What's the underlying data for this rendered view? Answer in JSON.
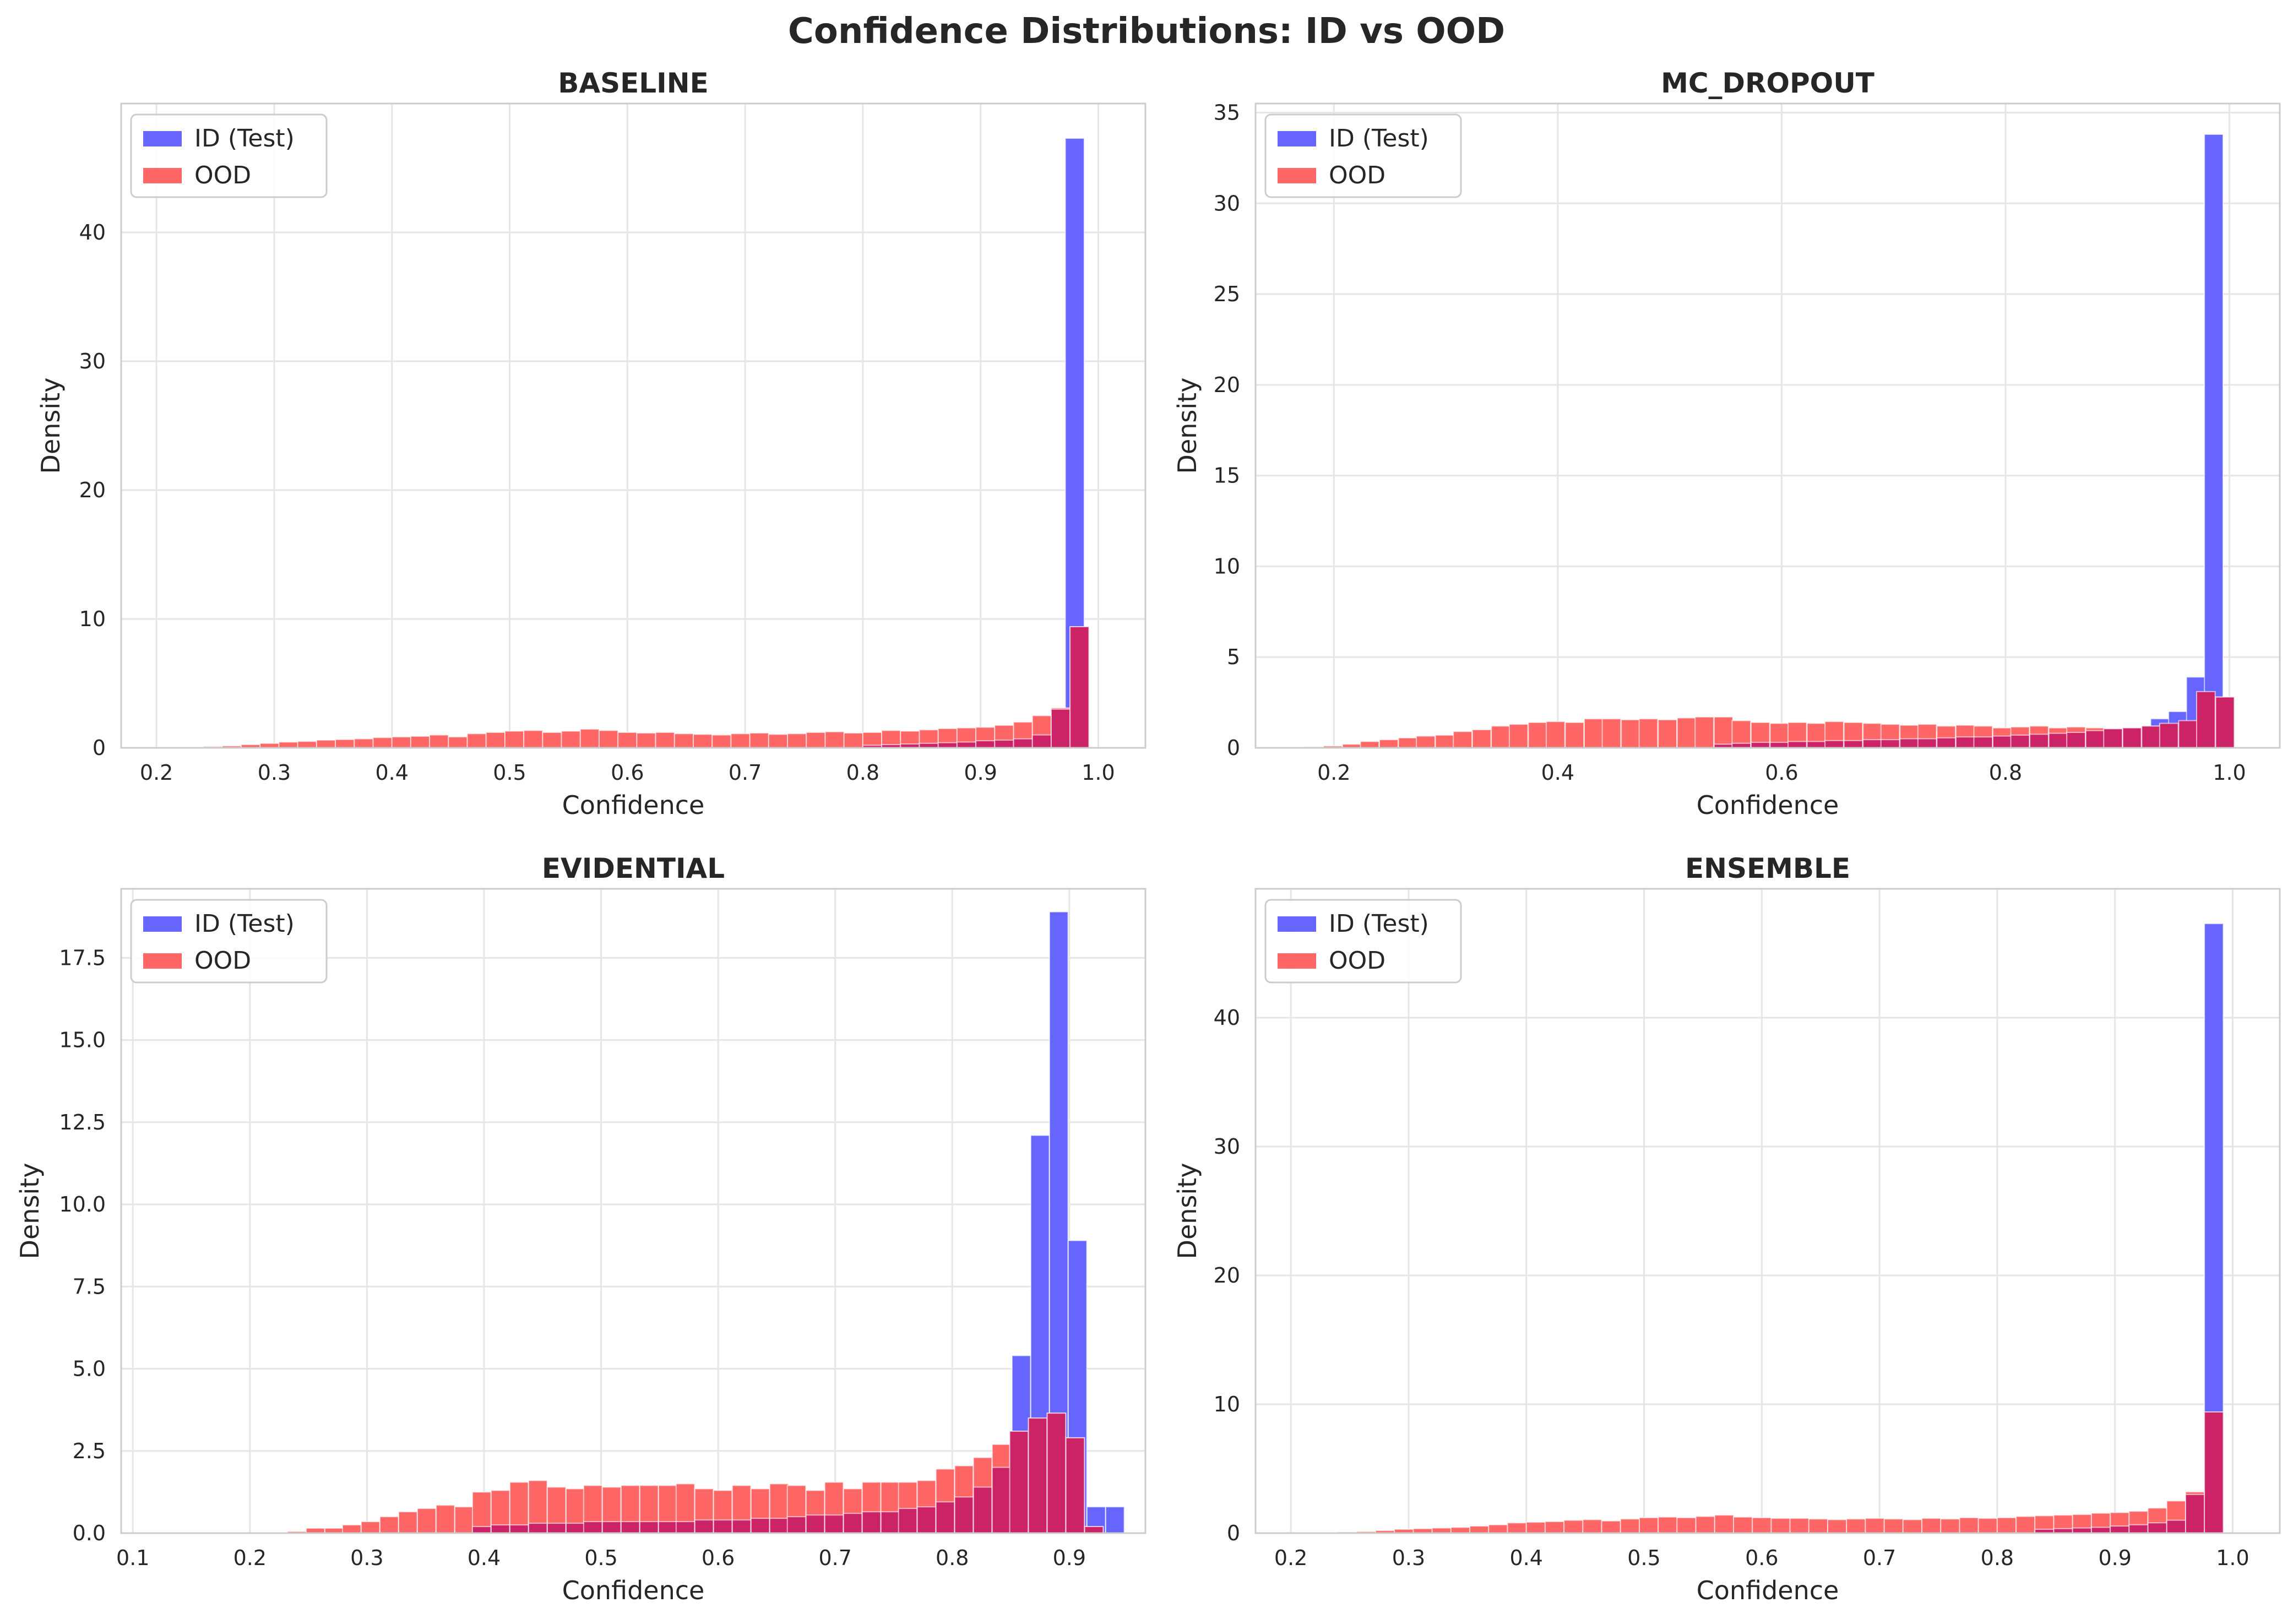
{
  "figure": {
    "title": "Confidence Distributions: ID vs OOD"
  },
  "colors": {
    "id_bar": "#6666ff",
    "ood_bar": "#ff6666",
    "overlap_bar": "#cc2266",
    "grid": "#e6e6e6",
    "axes_border": "#cccccc",
    "text": "#262626"
  },
  "chart_data": [
    {
      "type": "bar",
      "title": "BASELINE",
      "xlabel": "Confidence",
      "ylabel": "Density",
      "xlim": [
        0.17,
        1.04
      ],
      "ylim": [
        0,
        50
      ],
      "xticks": [
        0.2,
        0.3,
        0.4,
        0.5,
        0.6,
        0.7,
        0.8,
        0.9,
        1.0
      ],
      "xtick_labels": [
        "0.2",
        "0.3",
        "0.4",
        "0.5",
        "0.6",
        "0.7",
        "0.8",
        "0.9",
        "1.0"
      ],
      "yticks": [
        0,
        10,
        20,
        30,
        40
      ],
      "ytick_labels": [
        "0",
        "10",
        "20",
        "30",
        "40"
      ],
      "grid": true,
      "legend_position": "top-left",
      "series": [
        {
          "name": "ID (Test)",
          "x": [
            0.98
          ],
          "bin_width": 0.016,
          "values": [
            47.3
          ]
        },
        {
          "name": "OOD",
          "x": [
            0.2,
            0.216,
            0.232,
            0.248,
            0.264,
            0.28,
            0.296,
            0.312,
            0.328,
            0.344,
            0.36,
            0.376,
            0.392,
            0.408,
            0.424,
            0.44,
            0.456,
            0.472,
            0.488,
            0.504,
            0.52,
            0.536,
            0.552,
            0.568,
            0.584,
            0.6,
            0.616,
            0.632,
            0.648,
            0.664,
            0.68,
            0.696,
            0.712,
            0.728,
            0.744,
            0.76,
            0.776,
            0.792,
            0.808,
            0.824,
            0.84,
            0.856,
            0.872,
            0.888,
            0.904,
            0.92,
            0.936,
            0.952,
            0.968,
            0.984
          ],
          "bin_width": 0.016,
          "values": [
            0.02,
            0.03,
            0.05,
            0.1,
            0.15,
            0.25,
            0.35,
            0.45,
            0.5,
            0.6,
            0.65,
            0.7,
            0.8,
            0.85,
            0.9,
            1.0,
            0.85,
            1.1,
            1.2,
            1.3,
            1.35,
            1.2,
            1.3,
            1.45,
            1.35,
            1.2,
            1.15,
            1.2,
            1.1,
            1.05,
            1.0,
            1.1,
            1.15,
            1.05,
            1.1,
            1.2,
            1.25,
            1.15,
            1.2,
            1.35,
            1.3,
            1.4,
            1.5,
            1.55,
            1.6,
            1.75,
            2.0,
            2.5,
            3.1,
            9.4
          ]
        }
      ],
      "overlap": {
        "x": [
          0.808,
          0.824,
          0.84,
          0.856,
          0.872,
          0.888,
          0.904,
          0.92,
          0.936,
          0.952,
          0.968,
          0.984
        ],
        "bin_width": 0.016,
        "values": [
          0.2,
          0.25,
          0.3,
          0.35,
          0.4,
          0.45,
          0.55,
          0.6,
          0.7,
          1.0,
          3.0,
          9.4
        ]
      }
    },
    {
      "type": "bar",
      "title": "MC_DROPOUT",
      "xlabel": "Confidence",
      "ylabel": "Density",
      "xlim": [
        0.13,
        1.045
      ],
      "ylim": [
        0,
        35.5
      ],
      "xticks": [
        0.2,
        0.4,
        0.6,
        0.8,
        1.0
      ],
      "xtick_labels": [
        "0.2",
        "0.4",
        "0.6",
        "0.8",
        "1.0"
      ],
      "yticks": [
        0,
        5,
        10,
        15,
        20,
        25,
        30,
        35
      ],
      "ytick_labels": [
        "0",
        "5",
        "10",
        "15",
        "20",
        "25",
        "30",
        "35"
      ],
      "grid": true,
      "legend_position": "top-left",
      "series": [
        {
          "name": "ID (Test)",
          "x": [
            0.938,
            0.954,
            0.97,
            0.986
          ],
          "bin_width": 0.0166,
          "values": [
            1.6,
            2.0,
            3.9,
            33.8
          ]
        },
        {
          "name": "OOD",
          "x": [
            0.166,
            0.183,
            0.199,
            0.216,
            0.232,
            0.249,
            0.266,
            0.282,
            0.299,
            0.315,
            0.332,
            0.349,
            0.365,
            0.382,
            0.398,
            0.415,
            0.432,
            0.448,
            0.465,
            0.481,
            0.498,
            0.515,
            0.531,
            0.548,
            0.564,
            0.581,
            0.598,
            0.614,
            0.631,
            0.647,
            0.664,
            0.681,
            0.697,
            0.714,
            0.73,
            0.747,
            0.764,
            0.78,
            0.797,
            0.813,
            0.83,
            0.847,
            0.863,
            0.88,
            0.896,
            0.913,
            0.93,
            0.946,
            0.963,
            0.979,
            0.996
          ],
          "bin_width": 0.0166,
          "values": [
            0.02,
            0.05,
            0.1,
            0.2,
            0.35,
            0.45,
            0.55,
            0.65,
            0.7,
            0.9,
            1.0,
            1.2,
            1.3,
            1.4,
            1.45,
            1.4,
            1.6,
            1.6,
            1.55,
            1.6,
            1.55,
            1.65,
            1.7,
            1.7,
            1.5,
            1.4,
            1.35,
            1.4,
            1.35,
            1.45,
            1.4,
            1.35,
            1.3,
            1.25,
            1.3,
            1.2,
            1.25,
            1.2,
            1.1,
            1.15,
            1.2,
            1.1,
            1.15,
            1.1,
            1.05,
            1.1,
            1.2,
            1.3,
            1.35,
            1.5,
            2.8
          ]
        }
      ],
      "overlap": {
        "x": [
          0.548,
          0.564,
          0.581,
          0.598,
          0.614,
          0.631,
          0.647,
          0.664,
          0.681,
          0.697,
          0.714,
          0.73,
          0.747,
          0.764,
          0.78,
          0.797,
          0.813,
          0.83,
          0.847,
          0.863,
          0.88,
          0.896,
          0.913,
          0.93,
          0.946,
          0.963,
          0.979,
          0.996
        ],
        "bin_width": 0.0166,
        "values": [
          0.2,
          0.25,
          0.3,
          0.3,
          0.35,
          0.35,
          0.4,
          0.4,
          0.45,
          0.45,
          0.5,
          0.5,
          0.55,
          0.6,
          0.6,
          0.65,
          0.7,
          0.75,
          0.8,
          0.85,
          0.95,
          1.05,
          1.1,
          1.2,
          1.35,
          1.5,
          3.1,
          2.8
        ]
      }
    },
    {
      "type": "bar",
      "title": "EVIDENTIAL",
      "xlabel": "Confidence",
      "ylabel": "Density",
      "xlim": [
        0.09,
        0.965
      ],
      "ylim": [
        0,
        19.6
      ],
      "xticks": [
        0.1,
        0.2,
        0.3,
        0.4,
        0.5,
        0.6,
        0.7,
        0.8,
        0.9
      ],
      "xtick_labels": [
        "0.1",
        "0.2",
        "0.3",
        "0.4",
        "0.5",
        "0.6",
        "0.7",
        "0.8",
        "0.9"
      ],
      "yticks": [
        0,
        2.5,
        5.0,
        7.5,
        10.0,
        12.5,
        15.0,
        17.5
      ],
      "ytick_labels": [
        "0.0",
        "2.5",
        "5.0",
        "7.5",
        "10.0",
        "12.5",
        "15.0",
        "17.5"
      ],
      "grid": true,
      "legend_position": "top-left",
      "series": [
        {
          "name": "ID (Test)",
          "x": [
            0.859,
            0.875,
            0.891,
            0.907,
            0.923,
            0.939
          ],
          "bin_width": 0.0158,
          "values": [
            5.4,
            12.1,
            18.9,
            8.9,
            0.8,
            0.8
          ]
        },
        {
          "name": "OOD",
          "x": [
            0.24,
            0.256,
            0.272,
            0.287,
            0.303,
            0.319,
            0.335,
            0.351,
            0.367,
            0.383,
            0.398,
            0.414,
            0.43,
            0.446,
            0.462,
            0.478,
            0.493,
            0.509,
            0.525,
            0.541,
            0.557,
            0.572,
            0.588,
            0.604,
            0.62,
            0.636,
            0.652,
            0.667,
            0.683,
            0.699,
            0.715,
            0.731,
            0.747,
            0.762,
            0.778,
            0.794,
            0.81,
            0.826,
            0.842,
            0.857,
            0.873,
            0.889,
            0.905,
            0.921
          ],
          "bin_width": 0.0158,
          "values": [
            0.05,
            0.15,
            0.15,
            0.25,
            0.35,
            0.5,
            0.65,
            0.75,
            0.85,
            0.8,
            1.25,
            1.3,
            1.55,
            1.6,
            1.4,
            1.35,
            1.45,
            1.4,
            1.45,
            1.45,
            1.45,
            1.5,
            1.35,
            1.3,
            1.45,
            1.35,
            1.5,
            1.45,
            1.3,
            1.55,
            1.35,
            1.55,
            1.55,
            1.55,
            1.6,
            1.95,
            2.05,
            2.3,
            2.7,
            3.1,
            3.5,
            3.65,
            2.9,
            0.2
          ]
        }
      ],
      "overlap": {
        "x": [
          0.398,
          0.414,
          0.43,
          0.446,
          0.462,
          0.478,
          0.493,
          0.509,
          0.525,
          0.541,
          0.557,
          0.572,
          0.588,
          0.604,
          0.62,
          0.636,
          0.652,
          0.667,
          0.683,
          0.699,
          0.715,
          0.731,
          0.747,
          0.762,
          0.778,
          0.794,
          0.81,
          0.826,
          0.842,
          0.857,
          0.873,
          0.889,
          0.905,
          0.921
        ],
        "bin_width": 0.0158,
        "values": [
          0.2,
          0.25,
          0.25,
          0.3,
          0.3,
          0.3,
          0.35,
          0.35,
          0.35,
          0.35,
          0.35,
          0.35,
          0.4,
          0.4,
          0.4,
          0.45,
          0.45,
          0.5,
          0.55,
          0.55,
          0.6,
          0.65,
          0.65,
          0.75,
          0.8,
          0.95,
          1.1,
          1.4,
          2.0,
          3.1,
          3.5,
          3.65,
          2.9,
          0.2
        ]
      }
    },
    {
      "type": "bar",
      "title": "ENSEMBLE",
      "xlabel": "Confidence",
      "ylabel": "Density",
      "xlim": [
        0.17,
        1.04
      ],
      "ylim": [
        0,
        50
      ],
      "xticks": [
        0.2,
        0.3,
        0.4,
        0.5,
        0.6,
        0.7,
        0.8,
        0.9,
        1.0
      ],
      "xtick_labels": [
        "0.2",
        "0.3",
        "0.4",
        "0.5",
        "0.6",
        "0.7",
        "0.8",
        "0.9",
        "1.0"
      ],
      "yticks": [
        0,
        10,
        20,
        30,
        40
      ],
      "ytick_labels": [
        "0",
        "10",
        "20",
        "30",
        "40"
      ],
      "grid": true,
      "legend_position": "top-left",
      "series": [
        {
          "name": "ID (Test)",
          "x": [
            0.984
          ],
          "bin_width": 0.016,
          "values": [
            47.3
          ]
        },
        {
          "name": "OOD",
          "x": [
            0.216,
            0.232,
            0.248,
            0.264,
            0.28,
            0.296,
            0.312,
            0.328,
            0.344,
            0.36,
            0.376,
            0.392,
            0.408,
            0.424,
            0.44,
            0.456,
            0.472,
            0.488,
            0.504,
            0.52,
            0.536,
            0.552,
            0.568,
            0.584,
            0.6,
            0.616,
            0.632,
            0.648,
            0.664,
            0.68,
            0.696,
            0.712,
            0.728,
            0.744,
            0.76,
            0.776,
            0.792,
            0.808,
            0.824,
            0.84,
            0.856,
            0.872,
            0.888,
            0.904,
            0.92,
            0.936,
            0.952,
            0.968,
            0.984
          ],
          "bin_width": 0.016,
          "values": [
            0.02,
            0.05,
            0.08,
            0.12,
            0.2,
            0.3,
            0.35,
            0.4,
            0.45,
            0.55,
            0.65,
            0.8,
            0.85,
            0.9,
            1.0,
            1.05,
            0.95,
            1.1,
            1.2,
            1.25,
            1.2,
            1.3,
            1.4,
            1.25,
            1.2,
            1.15,
            1.15,
            1.1,
            1.05,
            1.1,
            1.15,
            1.1,
            1.05,
            1.15,
            1.1,
            1.2,
            1.15,
            1.2,
            1.3,
            1.35,
            1.4,
            1.45,
            1.55,
            1.6,
            1.7,
            1.95,
            2.5,
            3.2,
            9.4
          ]
        }
      ],
      "overlap": {
        "x": [
          0.84,
          0.856,
          0.872,
          0.888,
          0.904,
          0.92,
          0.936,
          0.952,
          0.968,
          0.984
        ],
        "bin_width": 0.016,
        "values": [
          0.3,
          0.35,
          0.4,
          0.45,
          0.55,
          0.65,
          0.8,
          1.0,
          3.0,
          9.4
        ]
      }
    }
  ]
}
